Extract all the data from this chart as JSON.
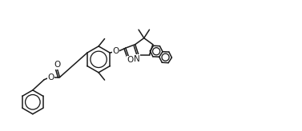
{
  "bg_color": "#ffffff",
  "line_color": "#1a1a1a",
  "line_width": 1.1,
  "font_size": 7.0,
  "figsize": [
    3.77,
    1.64
  ],
  "dpi": 100,
  "xlim": [
    0,
    10
  ],
  "ylim": [
    0,
    4.35
  ]
}
